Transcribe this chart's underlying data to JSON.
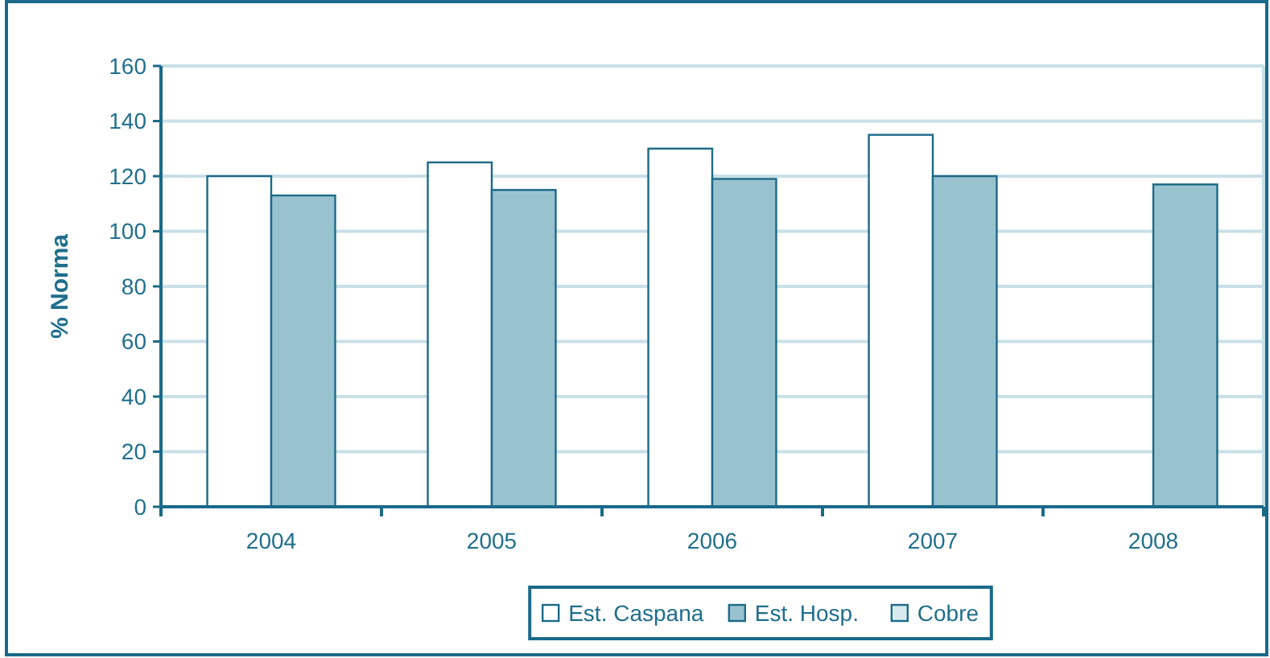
{
  "chart_data": {
    "type": "bar",
    "ylabel": "% Norma",
    "categories": [
      "2004",
      "2005",
      "2006",
      "2007",
      "2008"
    ],
    "series": [
      {
        "name": "Est. Caspana",
        "color": "#ffffff",
        "values": [
          120,
          125,
          130,
          135,
          null
        ]
      },
      {
        "name": "Est. Hosp.",
        "color": "#99c2cf",
        "values": [
          113,
          115,
          119,
          120,
          117
        ]
      },
      {
        "name": "Cobre",
        "color": "#d9eaef",
        "values": [
          null,
          null,
          null,
          null,
          null
        ]
      }
    ],
    "ylim": [
      0,
      160
    ],
    "yticks": [
      0,
      20,
      40,
      60,
      80,
      100,
      120,
      140,
      160
    ],
    "grid": "y",
    "legend": "bottom"
  }
}
